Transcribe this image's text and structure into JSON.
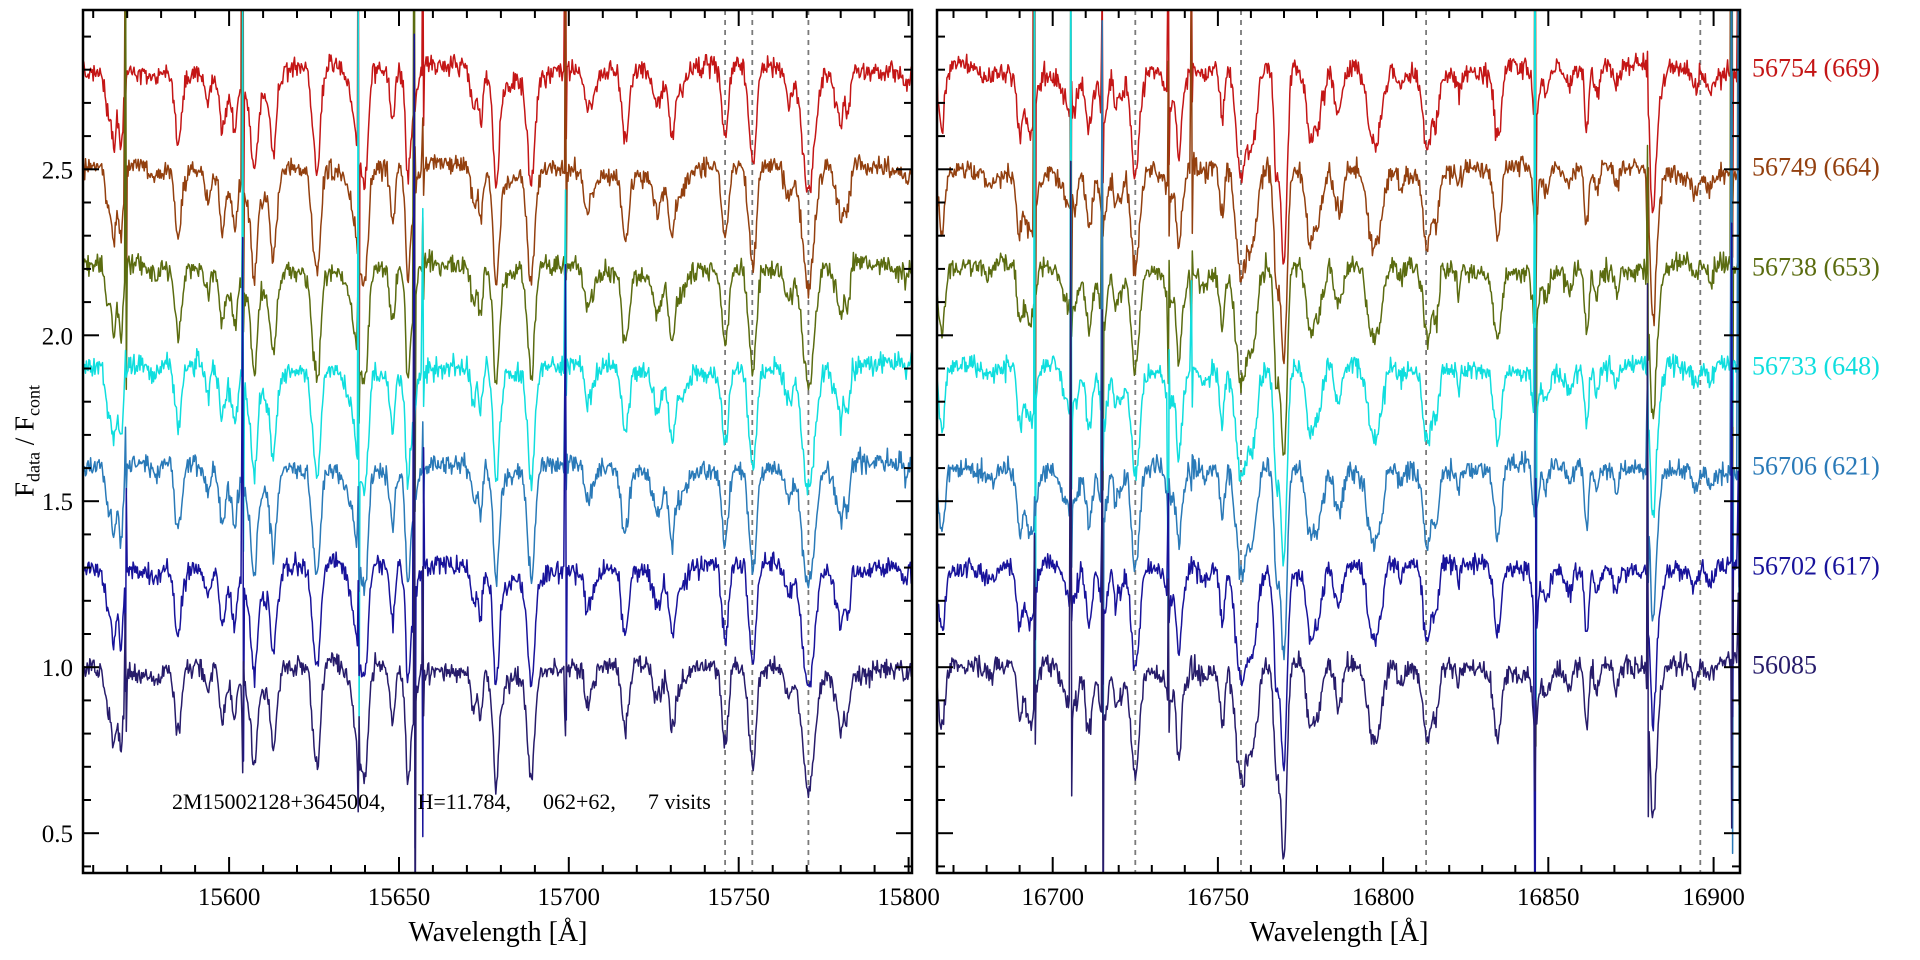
{
  "chart_data": {
    "type": "line",
    "title": "",
    "xlabel": "Wavelength [Å]",
    "ylabel": "F_data / F_cont",
    "ylabel_parts": [
      "F",
      "data",
      " / F",
      "cont"
    ],
    "ylim": [
      0.38,
      2.98
    ],
    "ytick_labels": [
      "0.5",
      "1.0",
      "1.5",
      "2.0",
      "2.5"
    ],
    "annotation_parts": [
      "2M15002128+3645004,",
      "H=11.784,",
      "062+62,",
      "7 visits"
    ],
    "legend_position": "right-outside",
    "grid": false,
    "series": [
      {
        "label": "56754 (669)",
        "color": "#c41616",
        "offset": 2.8
      },
      {
        "label": "56749 (664)",
        "color": "#93400f",
        "offset": 2.5
      },
      {
        "label": "56738 (653)",
        "color": "#5b6c10",
        "offset": 2.2
      },
      {
        "label": "56733 (648)",
        "color": "#10dede",
        "offset": 1.9
      },
      {
        "label": "56706 (621)",
        "color": "#2a7ab8",
        "offset": 1.6
      },
      {
        "label": "56702 (617)",
        "color": "#18139b",
        "offset": 1.3
      },
      {
        "label": "56085",
        "color": "#271c6b",
        "offset": 1.0
      }
    ],
    "panels": [
      {
        "xlim": [
          15557,
          15801
        ],
        "xtick_labels": [
          "15600",
          "15650",
          "15700",
          "15750",
          "15800"
        ],
        "marker_lines": [
          15746,
          15754,
          15770.5
        ],
        "sky_lines": [
          {
            "x": 15569.5,
            "s": 1.0
          },
          {
            "x": 15604.0,
            "s": 2.3
          },
          {
            "x": 15638.0,
            "s": 2.1
          },
          {
            "x": 15654.5,
            "s": 1.9
          },
          {
            "x": 15657.0,
            "s": 1.2
          },
          {
            "x": 15699.0,
            "s": 1.8
          }
        ],
        "absorption_lines": [
          {
            "x": 15585.0,
            "d": 0.2,
            "w": 1.4
          },
          {
            "x": 15598.0,
            "d": 0.16,
            "w": 1.2
          },
          {
            "x": 15613.0,
            "d": 0.14,
            "w": 1.0
          },
          {
            "x": 15625.0,
            "d": 0.18,
            "w": 1.3
          },
          {
            "x": 15648.0,
            "d": 0.13,
            "w": 1.1
          },
          {
            "x": 15672.0,
            "d": 0.12,
            "w": 1.1
          },
          {
            "x": 15746.0,
            "d": 0.22,
            "w": 1.4
          },
          {
            "x": 15754.0,
            "d": 0.26,
            "w": 1.6
          },
          {
            "x": 15770.5,
            "d": 0.36,
            "w": 2.5
          }
        ]
      },
      {
        "xlim": [
          16665,
          16908
        ],
        "xtick_labels": [
          "16700",
          "16750",
          "16800",
          "16850",
          "16900"
        ],
        "marker_lines": [
          16725,
          16757,
          16813,
          16896
        ],
        "sky_lines": [
          {
            "x": 16694.5,
            "s": 2.4
          },
          {
            "x": 16705.5,
            "s": 2.2
          },
          {
            "x": 16715.0,
            "s": 1.4
          },
          {
            "x": 16735.0,
            "s": 2.2
          },
          {
            "x": 16742.0,
            "s": 1.4
          },
          {
            "x": 16846.0,
            "s": 2.0
          },
          {
            "x": 16880.0,
            "s": 1.0
          },
          {
            "x": 16905.5,
            "s": 2.6
          },
          {
            "x": 16907.5,
            "s": 1.8
          }
        ],
        "absorption_lines": [
          {
            "x": 16690.0,
            "d": 0.16,
            "w": 1.2
          },
          {
            "x": 16711.0,
            "d": 0.18,
            "w": 1.4
          },
          {
            "x": 16725.0,
            "d": 0.3,
            "w": 1.8
          },
          {
            "x": 16757.0,
            "d": 0.33,
            "w": 2.2
          },
          {
            "x": 16770.0,
            "d": 0.15,
            "w": 1.3
          },
          {
            "x": 16846.0,
            "d": 0.13,
            "w": 1.2
          }
        ]
      }
    ]
  }
}
